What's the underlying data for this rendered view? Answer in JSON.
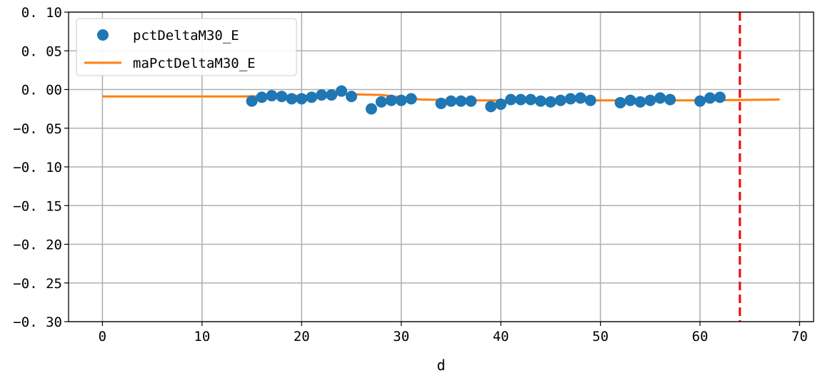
{
  "chart_data": {
    "type": "scatter",
    "title": "",
    "xlabel": "d",
    "ylabel": "",
    "xlim": [
      -3.4,
      71.4
    ],
    "ylim": [
      -0.3,
      0.1
    ],
    "xticks": [
      0,
      10,
      20,
      30,
      40,
      50,
      60,
      70
    ],
    "xtick_labels": [
      "0",
      "10",
      "20",
      "30",
      "40",
      "50",
      "60",
      "70"
    ],
    "yticks": [
      0.1,
      0.05,
      0.0,
      -0.05,
      -0.1,
      -0.15,
      -0.2,
      -0.25,
      -0.3
    ],
    "ytick_labels": [
      "0. 10",
      "0. 05",
      "0. 00",
      "−0. 05",
      "−0. 10",
      "−0. 15",
      "−0. 20",
      "−0. 25",
      "−0. 30"
    ],
    "grid": true,
    "legend_position": "top-left",
    "vline": {
      "x": 64,
      "color": "#ee1111",
      "style": "dashed"
    },
    "series": [
      {
        "name": "pctDeltaM30_E",
        "kind": "scatter",
        "color": "#1f77b4",
        "points": [
          [
            15,
            -0.015
          ],
          [
            16,
            -0.01
          ],
          [
            17,
            -0.008
          ],
          [
            18,
            -0.009
          ],
          [
            19,
            -0.012
          ],
          [
            20,
            -0.012
          ],
          [
            21,
            -0.01
          ],
          [
            22,
            -0.007
          ],
          [
            23,
            -0.007
          ],
          [
            24,
            -0.002
          ],
          [
            25,
            -0.009
          ],
          [
            27,
            -0.025
          ],
          [
            28,
            -0.016
          ],
          [
            29,
            -0.014
          ],
          [
            30,
            -0.014
          ],
          [
            31,
            -0.012
          ],
          [
            34,
            -0.018
          ],
          [
            35,
            -0.015
          ],
          [
            36,
            -0.015
          ],
          [
            37,
            -0.015
          ],
          [
            39,
            -0.022
          ],
          [
            40,
            -0.019
          ],
          [
            41,
            -0.013
          ],
          [
            42,
            -0.013
          ],
          [
            43,
            -0.013
          ],
          [
            44,
            -0.015
          ],
          [
            45,
            -0.016
          ],
          [
            46,
            -0.014
          ],
          [
            47,
            -0.012
          ],
          [
            48,
            -0.011
          ],
          [
            49,
            -0.014
          ],
          [
            52,
            -0.017
          ],
          [
            53,
            -0.014
          ],
          [
            54,
            -0.016
          ],
          [
            55,
            -0.014
          ],
          [
            56,
            -0.011
          ],
          [
            57,
            -0.013
          ],
          [
            60,
            -0.015
          ],
          [
            61,
            -0.011
          ],
          [
            62,
            -0.01
          ]
        ]
      },
      {
        "name": "maPctDeltaM30_E",
        "kind": "line",
        "color": "#ff7f0e",
        "points": [
          [
            0,
            -0.009
          ],
          [
            14,
            -0.009
          ],
          [
            18,
            -0.008
          ],
          [
            22,
            -0.008
          ],
          [
            24,
            -0.006
          ],
          [
            28,
            -0.007
          ],
          [
            30,
            -0.01
          ],
          [
            32,
            -0.013
          ],
          [
            38,
            -0.014
          ],
          [
            44,
            -0.014
          ],
          [
            50,
            -0.014
          ],
          [
            55,
            -0.014
          ],
          [
            60,
            -0.014
          ],
          [
            68,
            -0.013
          ]
        ]
      }
    ]
  }
}
